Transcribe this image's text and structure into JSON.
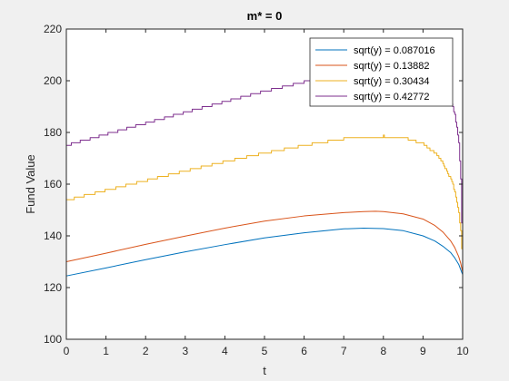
{
  "chart_data": {
    "type": "line",
    "title": "m* = 0",
    "xlabel": "t",
    "ylabel": "Fund Value",
    "xlim": [
      0,
      10
    ],
    "ylim": [
      100,
      220
    ],
    "xticks": [
      0,
      1,
      2,
      3,
      4,
      5,
      6,
      7,
      8,
      9,
      10
    ],
    "yticks": [
      100,
      120,
      140,
      160,
      180,
      200,
      220
    ],
    "grid": false,
    "legend_position": "top-right",
    "series": [
      {
        "name": "sqrt(y) = 0.087016",
        "color": "#0072BD",
        "stepped": false,
        "x": [
          0,
          1,
          2,
          3,
          4,
          5,
          6,
          7,
          7.5,
          8,
          8.5,
          9,
          9.3,
          9.5,
          9.7,
          9.8,
          9.9,
          9.95,
          10
        ],
        "y": [
          124.5,
          127.6,
          130.8,
          133.8,
          136.6,
          139.2,
          141.2,
          142.7,
          143,
          142.8,
          142,
          140,
          138,
          136,
          133.5,
          131.5,
          129,
          127,
          125
        ]
      },
      {
        "name": "sqrt(y) = 0.13882",
        "color": "#D95319",
        "stepped": false,
        "x": [
          0,
          1,
          2,
          3,
          4,
          5,
          6,
          7,
          7.5,
          7.8,
          8,
          8.5,
          9,
          9.3,
          9.5,
          9.7,
          9.8,
          9.9,
          9.95,
          10
        ],
        "y": [
          130,
          133.3,
          136.7,
          139.9,
          143,
          145.7,
          147.7,
          149,
          149.4,
          149.5,
          149.4,
          148.5,
          146.5,
          144,
          141.5,
          138,
          135.5,
          132,
          129.5,
          126
        ]
      },
      {
        "name": "sqrt(y) = 0.30434",
        "color": "#EDB120",
        "stepped": true,
        "x": [
          0,
          1,
          2,
          3,
          4,
          5,
          6,
          7,
          7.5,
          8,
          8.5,
          9,
          9.3,
          9.5,
          9.7,
          9.8,
          9.9,
          9.95,
          10
        ],
        "y": [
          153.8,
          157.6,
          161.4,
          165.1,
          168.7,
          172,
          175,
          177.5,
          178.3,
          178.5,
          178,
          175.5,
          172,
          168,
          162,
          157,
          149,
          142,
          128
        ]
      },
      {
        "name": "sqrt(y) = 0.42772",
        "color": "#7E2F8E",
        "stepped": true,
        "x": [
          0,
          1,
          2,
          3,
          4,
          5,
          6,
          6.5,
          7,
          7.5,
          8,
          8.5,
          9,
          9.3,
          9.5,
          9.7,
          9.8,
          9.9,
          9.95,
          10
        ],
        "y": [
          175,
          179.3,
          183.6,
          187.8,
          191.9,
          195.9,
          199.5,
          201,
          202,
          202.6,
          202.8,
          202.5,
          201.3,
          199.5,
          197,
          192,
          187,
          176,
          162,
          128
        ]
      }
    ]
  }
}
